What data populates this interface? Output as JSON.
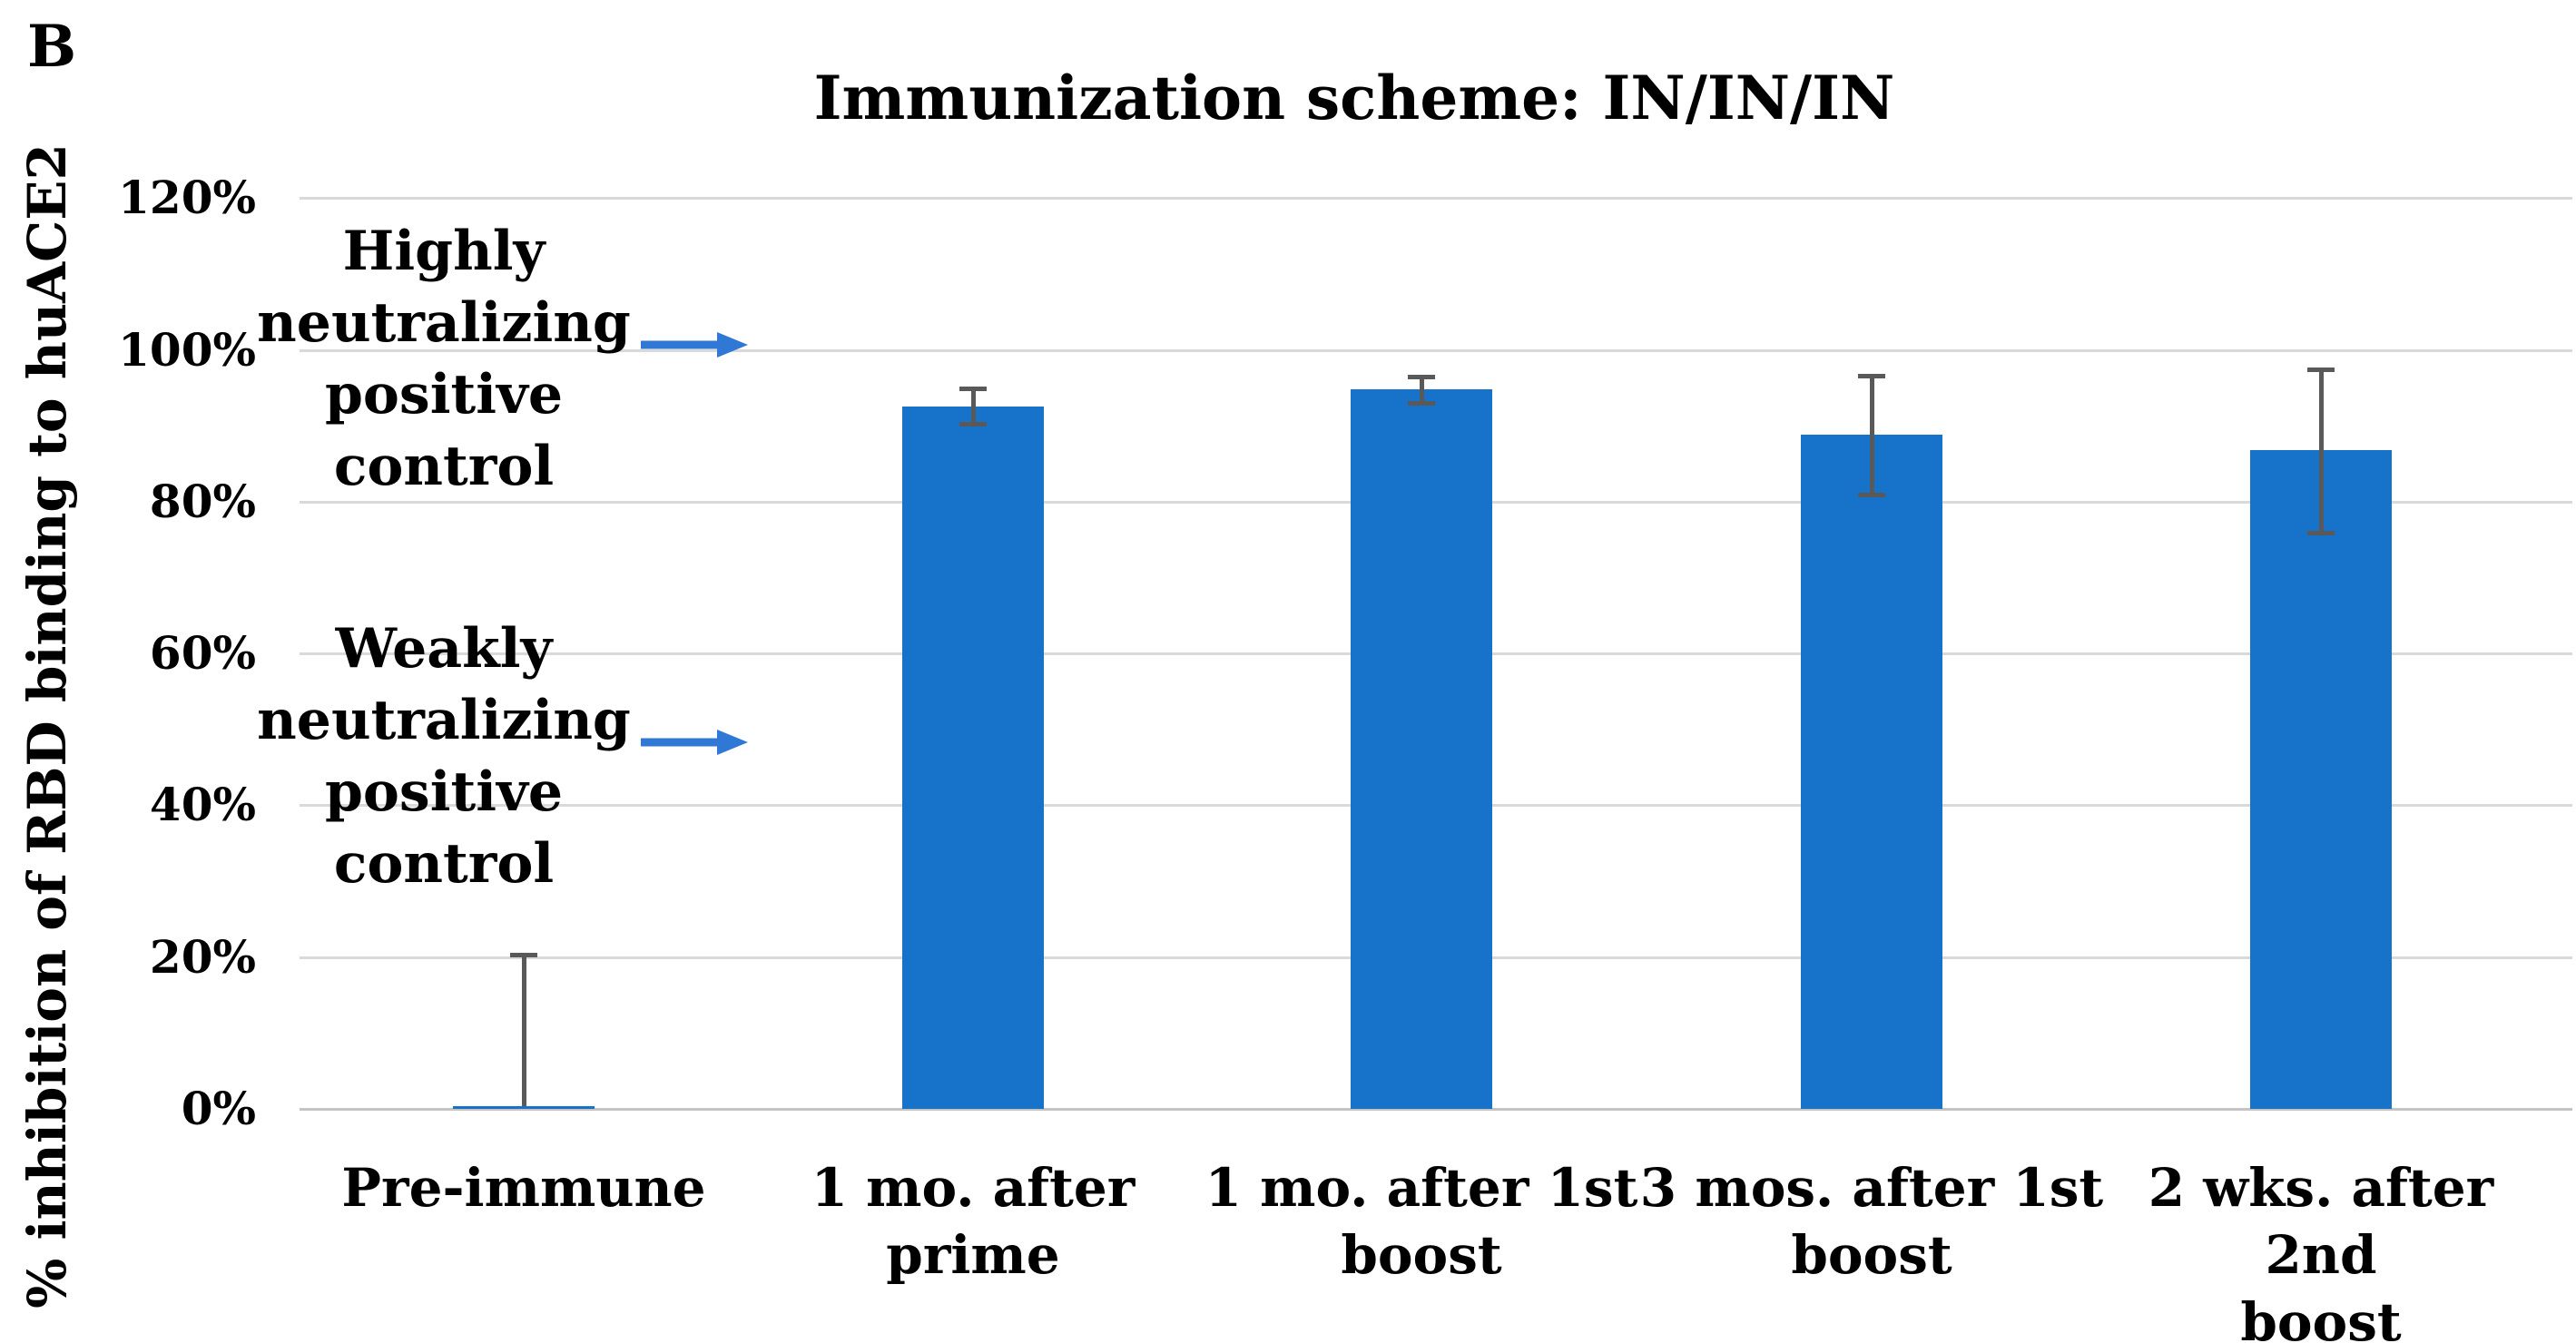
{
  "figure": {
    "panel_label": "B"
  },
  "chart_data": {
    "type": "bar",
    "title": "Immunization scheme: IN/IN/IN",
    "ylabel": "% inhibition of RBD binding to huACE2",
    "xlabel": "",
    "ylim": [
      0,
      120
    ],
    "yticks": [
      0,
      20,
      40,
      60,
      80,
      100,
      120
    ],
    "ytick_labels": [
      "0%",
      "20%",
      "40%",
      "60%",
      "80%",
      "100%",
      "120%"
    ],
    "grid": true,
    "legend": false,
    "bar_color": "#1773c9",
    "error_bar_color": "#595959",
    "gridline_color": "#d9d9d9",
    "axis_line_color": "#c4c4c4",
    "categories": [
      "Pre-immune",
      "1 mo. after prime",
      "1 mo. after 1st boost",
      "3 mos. after 1st boost",
      "2 wks. after 2nd boost"
    ],
    "category_lines": [
      [
        "Pre-immune"
      ],
      [
        "1 mo. after",
        "prime"
      ],
      [
        "1 mo. after 1st",
        "boost"
      ],
      [
        "3 mos. after 1st",
        "boost"
      ],
      [
        "2 wks. after 2nd",
        "boost"
      ]
    ],
    "values": [
      0.3,
      92.5,
      94.8,
      88.8,
      86.8
    ],
    "error_high": [
      20.6,
      95.1,
      96.7,
      96.8,
      97.7
    ],
    "error_low": [
      0.3,
      89.9,
      92.7,
      80.6,
      75.6
    ],
    "annotations": [
      {
        "text": "Highly neutralizing positive control",
        "lines": [
          "Highly",
          "neutralizing",
          "positive",
          "control"
        ],
        "arrow_at_percent": 100.6,
        "arrow_color": "#2f78d5"
      },
      {
        "text": "Weakly neutralizing positive control",
        "lines": [
          "Weakly",
          "neutralizing",
          "positive",
          "control"
        ],
        "arrow_at_percent": 48.3,
        "arrow_color": "#2f78d5"
      }
    ]
  }
}
